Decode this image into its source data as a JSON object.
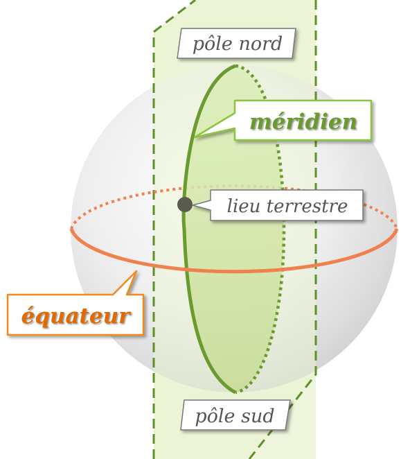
{
  "labels": {
    "north_pole": "pôle nord",
    "south_pole": "pôle sud",
    "meridian": "méridien",
    "place": "lieu terrestre",
    "equator": "équateur"
  },
  "colors": {
    "meridian": "#6b9a2e",
    "meridian_border": "#8cc43c",
    "equator": "#f0814f",
    "equator_border": "#f08a1e",
    "equator_text": "#e06a00",
    "plane_fill": "#eef5dc",
    "plane_stroke": "#5f8f2a",
    "point": "#5a5a50"
  }
}
